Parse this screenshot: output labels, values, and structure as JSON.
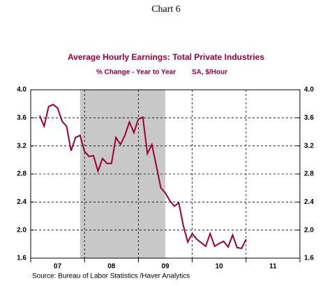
{
  "chart_data": {
    "type": "line",
    "page_title": "Chart 6",
    "title": "Average Hourly Earnings: Total Private Industries",
    "subtitle": "% Change - Year to Year",
    "subtitle_right": "SA, $/Hour",
    "source": "Source:  Bureau of Labor Statistics /Haver Analytics",
    "xlim": [
      2007,
      2012
    ],
    "xticks": [
      2007,
      2008,
      2009,
      2010,
      2011,
      2012
    ],
    "x_labels": [
      {
        "value": 2007.5,
        "label": "07"
      },
      {
        "value": 2008.5,
        "label": "08"
      },
      {
        "value": 2009.5,
        "label": "09"
      },
      {
        "value": 2010.5,
        "label": "10"
      },
      {
        "value": 2011.5,
        "label": "11"
      }
    ],
    "ylim": [
      1.6,
      4.0
    ],
    "yticks": [
      1.6,
      {
        "value": 2,
        "label": "2.0"
      },
      2.4,
      2.8,
      3.2,
      3.6,
      {
        "value": 4,
        "label": "4.0"
      }
    ],
    "grid": true,
    "shade": [
      2007.917,
      2009.5
    ],
    "shade_color": "#c8c8c8",
    "series": [
      {
        "color": "#990033",
        "x": [
          2007.167,
          2007.25,
          2007.333,
          2007.417,
          2007.5,
          2007.583,
          2007.667,
          2007.75,
          2007.833,
          2007.917,
          2008.0,
          2008.083,
          2008.167,
          2008.25,
          2008.333,
          2008.417,
          2008.5,
          2008.583,
          2008.667,
          2008.75,
          2008.833,
          2008.917,
          2009.0,
          2009.083,
          2009.167,
          2009.25,
          2009.333,
          2009.417,
          2009.5,
          2009.583,
          2009.667,
          2009.75,
          2009.833,
          2009.917,
          2010.0,
          2010.083,
          2010.167,
          2010.25,
          2010.333,
          2010.417,
          2010.5,
          2010.583,
          2010.667,
          2010.75,
          2010.833,
          2010.917,
          2011.0
        ],
        "values": [
          3.63,
          3.48,
          3.76,
          3.79,
          3.74,
          3.55,
          3.48,
          3.13,
          3.32,
          3.35,
          3.12,
          3.05,
          3.06,
          2.84,
          3.02,
          2.95,
          2.95,
          3.32,
          3.22,
          3.35,
          3.54,
          3.39,
          3.58,
          3.61,
          3.09,
          3.22,
          2.92,
          2.6,
          2.53,
          2.42,
          2.34,
          2.39,
          2.07,
          1.83,
          1.95,
          1.87,
          1.82,
          1.77,
          1.95,
          1.77,
          1.81,
          1.84,
          1.76,
          1.93,
          1.75,
          1.74,
          1.87
        ]
      }
    ]
  }
}
